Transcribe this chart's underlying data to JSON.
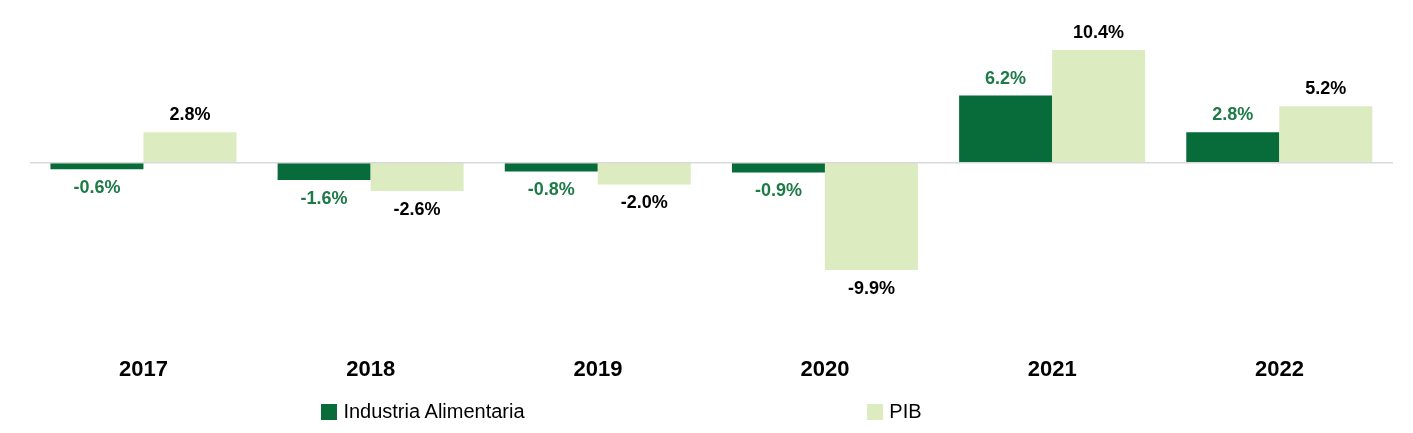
{
  "chart_data": {
    "type": "bar",
    "categories": [
      "2017",
      "2018",
      "2019",
      "2020",
      "2021",
      "2022"
    ],
    "series": [
      {
        "name": "Industria Alimentaria",
        "color": "#076b3a",
        "values": [
          -0.6,
          -1.6,
          -0.8,
          -0.9,
          6.2,
          2.8
        ],
        "value_labels": [
          "-0.6%",
          "-1.6%",
          "-0.8%",
          "-0.9%",
          "6.2%",
          "2.8%"
        ]
      },
      {
        "name": "PIB",
        "color": "#dcebc0",
        "values": [
          2.8,
          -2.6,
          -2.0,
          -9.9,
          10.4,
          5.2
        ],
        "value_labels": [
          "2.8%",
          "-2.6%",
          "-2.0%",
          "-9.9%",
          "10.4%",
          "5.2%"
        ]
      }
    ],
    "legend": "bottom",
    "grid": false
  }
}
